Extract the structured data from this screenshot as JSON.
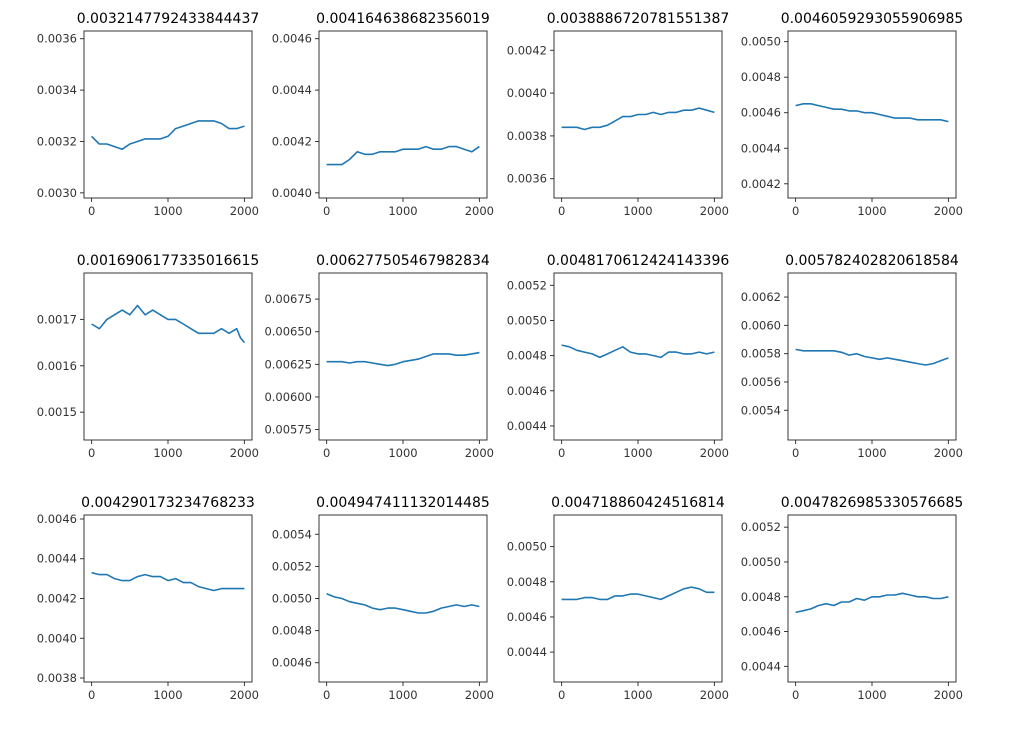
{
  "series_color": "#1f77b4",
  "chart_data": [
    {
      "type": "line",
      "title": "0.0032147792433844437",
      "xlim": [
        -100,
        2100
      ],
      "ylim": [
        0.00298,
        0.00363
      ],
      "xticks": [
        {
          "v": 0,
          "label": "0"
        },
        {
          "v": 1000,
          "label": "1000"
        },
        {
          "v": 2000,
          "label": "2000"
        }
      ],
      "yticks": [
        {
          "v": 0.003,
          "label": "0.0030"
        },
        {
          "v": 0.0032,
          "label": "0.0032"
        },
        {
          "v": 0.0034,
          "label": "0.0034"
        },
        {
          "v": 0.0036,
          "label": "0.0036"
        }
      ],
      "x": [
        0,
        100,
        200,
        300,
        400,
        500,
        600,
        700,
        800,
        900,
        1000,
        1100,
        1200,
        1300,
        1400,
        1500,
        1600,
        1700,
        1800,
        1900,
        2000
      ],
      "y": [
        0.00322,
        0.00319,
        0.00319,
        0.00318,
        0.00317,
        0.00319,
        0.0032,
        0.00321,
        0.00321,
        0.00321,
        0.00322,
        0.00325,
        0.00326,
        0.00327,
        0.00328,
        0.00328,
        0.00328,
        0.00327,
        0.00325,
        0.00325,
        0.00326
      ]
    },
    {
      "type": "line",
      "title": "0.004164638682356019",
      "xlim": [
        -100,
        2100
      ],
      "ylim": [
        0.00398,
        0.00463
      ],
      "xticks": [
        {
          "v": 0,
          "label": "0"
        },
        {
          "v": 1000,
          "label": "1000"
        },
        {
          "v": 2000,
          "label": "2000"
        }
      ],
      "yticks": [
        {
          "v": 0.004,
          "label": "0.0040"
        },
        {
          "v": 0.0042,
          "label": "0.0042"
        },
        {
          "v": 0.0044,
          "label": "0.0044"
        },
        {
          "v": 0.0046,
          "label": "0.0046"
        }
      ],
      "x": [
        0,
        100,
        200,
        300,
        400,
        500,
        600,
        700,
        800,
        900,
        1000,
        1100,
        1200,
        1300,
        1400,
        1500,
        1600,
        1700,
        1800,
        1900,
        2000
      ],
      "y": [
        0.00411,
        0.00411,
        0.00411,
        0.00413,
        0.00416,
        0.00415,
        0.00415,
        0.00416,
        0.00416,
        0.00416,
        0.00417,
        0.00417,
        0.00417,
        0.00418,
        0.00417,
        0.00417,
        0.00418,
        0.00418,
        0.00417,
        0.00416,
        0.00418
      ]
    },
    {
      "type": "line",
      "title": "0.0038886720781551387",
      "xlim": [
        -100,
        2100
      ],
      "ylim": [
        0.00351,
        0.00429
      ],
      "xticks": [
        {
          "v": 0,
          "label": "0"
        },
        {
          "v": 1000,
          "label": "1000"
        },
        {
          "v": 2000,
          "label": "2000"
        }
      ],
      "yticks": [
        {
          "v": 0.0036,
          "label": "0.0036"
        },
        {
          "v": 0.0038,
          "label": "0.0038"
        },
        {
          "v": 0.004,
          "label": "0.0040"
        },
        {
          "v": 0.0042,
          "label": "0.0042"
        }
      ],
      "x": [
        0,
        100,
        200,
        300,
        400,
        500,
        600,
        700,
        800,
        900,
        1000,
        1100,
        1200,
        1300,
        1400,
        1500,
        1600,
        1700,
        1800,
        1900,
        2000
      ],
      "y": [
        0.00384,
        0.00384,
        0.00384,
        0.00383,
        0.00384,
        0.00384,
        0.00385,
        0.00387,
        0.00389,
        0.00389,
        0.0039,
        0.0039,
        0.00391,
        0.0039,
        0.00391,
        0.00391,
        0.00392,
        0.00392,
        0.00393,
        0.00392,
        0.00391
      ]
    },
    {
      "type": "line",
      "title": "0.004605929305590698​5",
      "xlim": [
        -100,
        2100
      ],
      "ylim": [
        0.00412,
        0.00506
      ],
      "xticks": [
        {
          "v": 0,
          "label": "0"
        },
        {
          "v": 1000,
          "label": "1000"
        },
        {
          "v": 2000,
          "label": "2000"
        }
      ],
      "yticks": [
        {
          "v": 0.0042,
          "label": "0.0042"
        },
        {
          "v": 0.0044,
          "label": "0.0044"
        },
        {
          "v": 0.0046,
          "label": "0.0046"
        },
        {
          "v": 0.0048,
          "label": "0.0048"
        },
        {
          "v": 0.005,
          "label": "0.0050"
        }
      ],
      "x": [
        0,
        100,
        200,
        300,
        400,
        500,
        600,
        700,
        800,
        900,
        1000,
        1100,
        1200,
        1300,
        1400,
        1500,
        1600,
        1700,
        1800,
        1900,
        2000
      ],
      "y": [
        0.00464,
        0.00465,
        0.00465,
        0.00464,
        0.00463,
        0.00462,
        0.00462,
        0.00461,
        0.00461,
        0.0046,
        0.0046,
        0.00459,
        0.00458,
        0.00457,
        0.00457,
        0.00457,
        0.00456,
        0.00456,
        0.00456,
        0.00456,
        0.00455
      ]
    },
    {
      "type": "line",
      "title": "0.001690617733501661​5",
      "xlim": [
        -100,
        2100
      ],
      "ylim": [
        0.00144,
        0.0018
      ],
      "xticks": [
        {
          "v": 0,
          "label": "0"
        },
        {
          "v": 1000,
          "label": "1000"
        },
        {
          "v": 2000,
          "label": "2000"
        }
      ],
      "yticks": [
        {
          "v": 0.0015,
          "label": "0.0015"
        },
        {
          "v": 0.0016,
          "label": "0.0016"
        },
        {
          "v": 0.0017,
          "label": "0.0017"
        }
      ],
      "x": [
        0,
        100,
        200,
        300,
        400,
        500,
        600,
        700,
        800,
        900,
        1000,
        1100,
        1200,
        1300,
        1400,
        1500,
        1600,
        1700,
        1800,
        1900,
        1950,
        2000
      ],
      "y": [
        0.00169,
        0.00168,
        0.0017,
        0.00171,
        0.00172,
        0.00171,
        0.00173,
        0.00171,
        0.00172,
        0.00171,
        0.0017,
        0.0017,
        0.00169,
        0.00168,
        0.00167,
        0.00167,
        0.00167,
        0.00168,
        0.00167,
        0.00168,
        0.00166,
        0.00165
      ]
    },
    {
      "type": "line",
      "title": "0.00627750546798283​4",
      "xlim": [
        -100,
        2100
      ],
      "ylim": [
        0.00567,
        0.00695
      ],
      "xticks": [
        {
          "v": 0,
          "label": "0"
        },
        {
          "v": 1000,
          "label": "1000"
        },
        {
          "v": 2000,
          "label": "2000"
        }
      ],
      "yticks": [
        {
          "v": 0.00575,
          "label": "0.00575"
        },
        {
          "v": 0.006,
          "label": "0.00600"
        },
        {
          "v": 0.00625,
          "label": "0.00625"
        },
        {
          "v": 0.0065,
          "label": "0.00650"
        },
        {
          "v": 0.00675,
          "label": "0.00675"
        }
      ],
      "x": [
        0,
        100,
        200,
        300,
        400,
        500,
        600,
        700,
        800,
        900,
        1000,
        1100,
        1200,
        1300,
        1400,
        1500,
        1600,
        1700,
        1800,
        1900,
        2000
      ],
      "y": [
        0.00627,
        0.00627,
        0.00627,
        0.00626,
        0.00627,
        0.00627,
        0.00626,
        0.00625,
        0.00624,
        0.00625,
        0.00627,
        0.00628,
        0.00629,
        0.00631,
        0.00633,
        0.00633,
        0.00633,
        0.00632,
        0.00632,
        0.00633,
        0.00634
      ]
    },
    {
      "type": "line",
      "title": "0.0048170612424143396",
      "xlim": [
        -100,
        2100
      ],
      "ylim": [
        0.00432,
        0.00527
      ],
      "xticks": [
        {
          "v": 0,
          "label": "0"
        },
        {
          "v": 1000,
          "label": "1000"
        },
        {
          "v": 2000,
          "label": "2000"
        }
      ],
      "yticks": [
        {
          "v": 0.0044,
          "label": "0.0044"
        },
        {
          "v": 0.0046,
          "label": "0.0046"
        },
        {
          "v": 0.0048,
          "label": "0.0048"
        },
        {
          "v": 0.005,
          "label": "0.0050"
        },
        {
          "v": 0.0052,
          "label": "0.0052"
        }
      ],
      "x": [
        0,
        100,
        200,
        300,
        400,
        500,
        600,
        700,
        800,
        900,
        1000,
        1100,
        1200,
        1300,
        1400,
        1500,
        1600,
        1700,
        1800,
        1900,
        2000
      ],
      "y": [
        0.00486,
        0.00485,
        0.00483,
        0.00482,
        0.00481,
        0.00479,
        0.00481,
        0.00483,
        0.00485,
        0.00482,
        0.00481,
        0.00481,
        0.0048,
        0.00479,
        0.00482,
        0.00482,
        0.00481,
        0.00481,
        0.00482,
        0.00481,
        0.00482
      ]
    },
    {
      "type": "line",
      "title": "0.005782402820618584",
      "xlim": [
        -100,
        2100
      ],
      "ylim": [
        0.00519,
        0.00637
      ],
      "xticks": [
        {
          "v": 0,
          "label": "0"
        },
        {
          "v": 1000,
          "label": "1000"
        },
        {
          "v": 2000,
          "label": "2000"
        }
      ],
      "yticks": [
        {
          "v": 0.0054,
          "label": "0.0054"
        },
        {
          "v": 0.0056,
          "label": "0.0056"
        },
        {
          "v": 0.0058,
          "label": "0.0058"
        },
        {
          "v": 0.006,
          "label": "0.0060"
        },
        {
          "v": 0.0062,
          "label": "0.0062"
        }
      ],
      "x": [
        0,
        100,
        200,
        300,
        400,
        500,
        600,
        700,
        800,
        900,
        1000,
        1100,
        1200,
        1300,
        1400,
        1500,
        1600,
        1700,
        1800,
        1900,
        2000
      ],
      "y": [
        0.00583,
        0.00582,
        0.00582,
        0.00582,
        0.00582,
        0.00582,
        0.00581,
        0.00579,
        0.0058,
        0.00578,
        0.00577,
        0.00576,
        0.00577,
        0.00576,
        0.00575,
        0.00574,
        0.00573,
        0.00572,
        0.00573,
        0.00575,
        0.00577
      ]
    },
    {
      "type": "line",
      "title": "0.00429017323476823​3",
      "xlim": [
        -100,
        2100
      ],
      "ylim": [
        0.00378,
        0.00462
      ],
      "xticks": [
        {
          "v": 0,
          "label": "0"
        },
        {
          "v": 1000,
          "label": "1000"
        },
        {
          "v": 2000,
          "label": "2000"
        }
      ],
      "yticks": [
        {
          "v": 0.0038,
          "label": "0.0038"
        },
        {
          "v": 0.004,
          "label": "0.0040"
        },
        {
          "v": 0.0042,
          "label": "0.0042"
        },
        {
          "v": 0.0044,
          "label": "0.0044"
        },
        {
          "v": 0.0046,
          "label": "0.0046"
        }
      ],
      "x": [
        0,
        100,
        200,
        300,
        400,
        500,
        600,
        700,
        800,
        900,
        1000,
        1100,
        1200,
        1300,
        1400,
        1500,
        1600,
        1700,
        1800,
        1900,
        2000
      ],
      "y": [
        0.00433,
        0.00432,
        0.00432,
        0.0043,
        0.00429,
        0.00429,
        0.00431,
        0.00432,
        0.00431,
        0.00431,
        0.00429,
        0.0043,
        0.00428,
        0.00428,
        0.00426,
        0.00425,
        0.00424,
        0.00425,
        0.00425,
        0.00425,
        0.00425
      ]
    },
    {
      "type": "line",
      "title": "0.004947411132014485",
      "xlim": [
        -100,
        2100
      ],
      "ylim": [
        0.00448,
        0.00552
      ],
      "xticks": [
        {
          "v": 0,
          "label": "0"
        },
        {
          "v": 1000,
          "label": "1000"
        },
        {
          "v": 2000,
          "label": "2000"
        }
      ],
      "yticks": [
        {
          "v": 0.0046,
          "label": "0.0046"
        },
        {
          "v": 0.0048,
          "label": "0.0048"
        },
        {
          "v": 0.005,
          "label": "0.0050"
        },
        {
          "v": 0.0052,
          "label": "0.0052"
        },
        {
          "v": 0.0054,
          "label": "0.0054"
        }
      ],
      "x": [
        0,
        100,
        200,
        300,
        400,
        500,
        600,
        700,
        800,
        900,
        1000,
        1100,
        1200,
        1300,
        1400,
        1500,
        1600,
        1700,
        1800,
        1900,
        2000
      ],
      "y": [
        0.00503,
        0.00501,
        0.005,
        0.00498,
        0.00497,
        0.00496,
        0.00494,
        0.00493,
        0.00494,
        0.00494,
        0.00493,
        0.00492,
        0.00491,
        0.00491,
        0.00492,
        0.00494,
        0.00495,
        0.00496,
        0.00495,
        0.00496,
        0.00495
      ]
    },
    {
      "type": "line",
      "title": "0.004718860424516814",
      "xlim": [
        -100,
        2100
      ],
      "ylim": [
        0.00423,
        0.00518
      ],
      "xticks": [
        {
          "v": 0,
          "label": "0"
        },
        {
          "v": 1000,
          "label": "1000"
        },
        {
          "v": 2000,
          "label": "2000"
        }
      ],
      "yticks": [
        {
          "v": 0.0044,
          "label": "0.0044"
        },
        {
          "v": 0.0046,
          "label": "0.0046"
        },
        {
          "v": 0.0048,
          "label": "0.0048"
        },
        {
          "v": 0.005,
          "label": "0.0050"
        }
      ],
      "x": [
        0,
        100,
        200,
        300,
        400,
        500,
        600,
        700,
        800,
        900,
        1000,
        1100,
        1200,
        1300,
        1400,
        1500,
        1600,
        1700,
        1800,
        1900,
        2000
      ],
      "y": [
        0.0047,
        0.0047,
        0.0047,
        0.00471,
        0.00471,
        0.0047,
        0.0047,
        0.00472,
        0.00472,
        0.00473,
        0.00473,
        0.00472,
        0.00471,
        0.0047,
        0.00472,
        0.00474,
        0.00476,
        0.00477,
        0.00476,
        0.00474,
        0.00474
      ]
    },
    {
      "type": "line",
      "title": "0.004782698533057668​5",
      "xlim": [
        -100,
        2100
      ],
      "ylim": [
        0.00431,
        0.00527
      ],
      "xticks": [
        {
          "v": 0,
          "label": "0"
        },
        {
          "v": 1000,
          "label": "1000"
        },
        {
          "v": 2000,
          "label": "2000"
        }
      ],
      "yticks": [
        {
          "v": 0.0044,
          "label": "0.0044"
        },
        {
          "v": 0.0046,
          "label": "0.0046"
        },
        {
          "v": 0.0048,
          "label": "0.0048"
        },
        {
          "v": 0.005,
          "label": "0.0050"
        },
        {
          "v": 0.0052,
          "label": "0.0052"
        }
      ],
      "x": [
        0,
        100,
        200,
        300,
        400,
        500,
        600,
        700,
        800,
        900,
        1000,
        1100,
        1200,
        1300,
        1400,
        1500,
        1600,
        1700,
        1800,
        1900,
        2000
      ],
      "y": [
        0.00471,
        0.00472,
        0.00473,
        0.00475,
        0.00476,
        0.00475,
        0.00477,
        0.00477,
        0.00479,
        0.00478,
        0.0048,
        0.0048,
        0.00481,
        0.00481,
        0.00482,
        0.00481,
        0.0048,
        0.0048,
        0.00479,
        0.00479,
        0.0048
      ]
    }
  ]
}
